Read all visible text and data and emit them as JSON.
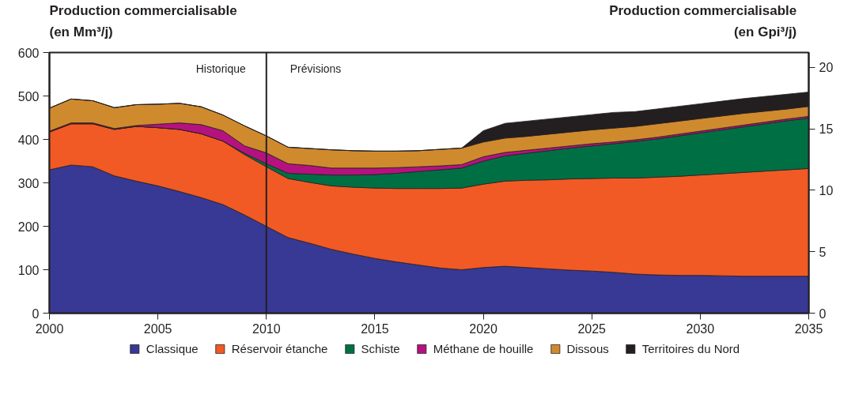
{
  "chart_data": {
    "type": "area",
    "stacked": true,
    "ylabel": "Production commercialisable\n(en Mm³/j)",
    "y2label": "Production commercialisable\n(en Gpi³/j)",
    "x": [
      2000,
      2001,
      2002,
      2003,
      2004,
      2005,
      2006,
      2007,
      2008,
      2009,
      2010,
      2011,
      2012,
      2013,
      2014,
      2015,
      2016,
      2017,
      2018,
      2019,
      2020,
      2021,
      2022,
      2023,
      2024,
      2025,
      2026,
      2027,
      2028,
      2029,
      2030,
      2031,
      2032,
      2033,
      2034,
      2035
    ],
    "series": [
      {
        "name": "Classique",
        "color": "#383895",
        "values": [
          330,
          341,
          337,
          316,
          304,
          293,
          280,
          266,
          250,
          226,
          200,
          174,
          161,
          147,
          136,
          126,
          118,
          111,
          104,
          100,
          105,
          108,
          105,
          102,
          99,
          97,
          94,
          90,
          88,
          87,
          87,
          86,
          85,
          85,
          85,
          85
        ]
      },
      {
        "name": "Réservoir étanche",
        "color": "#f15a24",
        "values": [
          87,
          95,
          99,
          107,
          126,
          134,
          143,
          147,
          146,
          139,
          137,
          136,
          140,
          146,
          154,
          162,
          169,
          176,
          183,
          188,
          192,
          196,
          201,
          205,
          210,
          213,
          217,
          221,
          225,
          228,
          231,
          235,
          239,
          242,
          245,
          248
        ]
      },
      {
        "name": "Schiste",
        "color": "#007044",
        "values": [
          0,
          0,
          0,
          0,
          0,
          0,
          0,
          0,
          0,
          3,
          7,
          12,
          19,
          25,
          28,
          31,
          35,
          39,
          43,
          46,
          53,
          58,
          62,
          67,
          71,
          75,
          79,
          84,
          88,
          93,
          97,
          101,
          105,
          109,
          113,
          116
        ]
      },
      {
        "name": "Méthane de houille",
        "color": "#b5127f",
        "values": [
          2,
          2,
          2,
          2,
          2,
          8,
          15,
          21,
          24,
          17,
          25,
          22,
          20,
          16,
          16,
          15,
          13,
          11,
          9,
          8,
          10,
          8,
          7,
          6,
          5,
          5,
          4,
          4,
          4,
          4,
          4,
          4,
          4,
          4,
          4,
          4
        ]
      },
      {
        "name": "Dissous",
        "color": "#d08a2e",
        "values": [
          53,
          55,
          51,
          48,
          48,
          46,
          45,
          41,
          36,
          46,
          39,
          38,
          39,
          42,
          40,
          39,
          38,
          37,
          38,
          38,
          34,
          33,
          32,
          32,
          32,
          32,
          32,
          31,
          31,
          30,
          29,
          28,
          27,
          25,
          23,
          23
        ]
      },
      {
        "name": "Territoires du Nord",
        "color": "#231f20",
        "values": [
          0,
          0,
          0,
          0,
          0,
          0,
          0,
          0,
          0,
          0,
          0,
          0,
          0,
          0,
          0,
          0,
          0,
          0,
          0,
          0,
          26,
          34,
          35,
          35,
          35,
          35,
          36,
          34,
          34,
          34,
          34,
          34,
          34,
          34,
          34,
          33
        ]
      }
    ],
    "xlim": [
      2000,
      2035
    ],
    "xticks": [
      2000,
      2005,
      2010,
      2015,
      2020,
      2025,
      2030,
      2035
    ],
    "ylim": [
      0,
      600
    ],
    "yticks": [
      0,
      100,
      200,
      300,
      400,
      500,
      600
    ],
    "y2lim": [
      0,
      21.2
    ],
    "y2ticks": [
      0,
      5,
      10,
      15,
      20
    ],
    "ref_lines": [
      {
        "axis": "x",
        "value": 2010,
        "color": "#231f20"
      }
    ],
    "annotations": [
      "Historique",
      "Prévisions"
    ],
    "grid": false,
    "legend": "bottom"
  }
}
